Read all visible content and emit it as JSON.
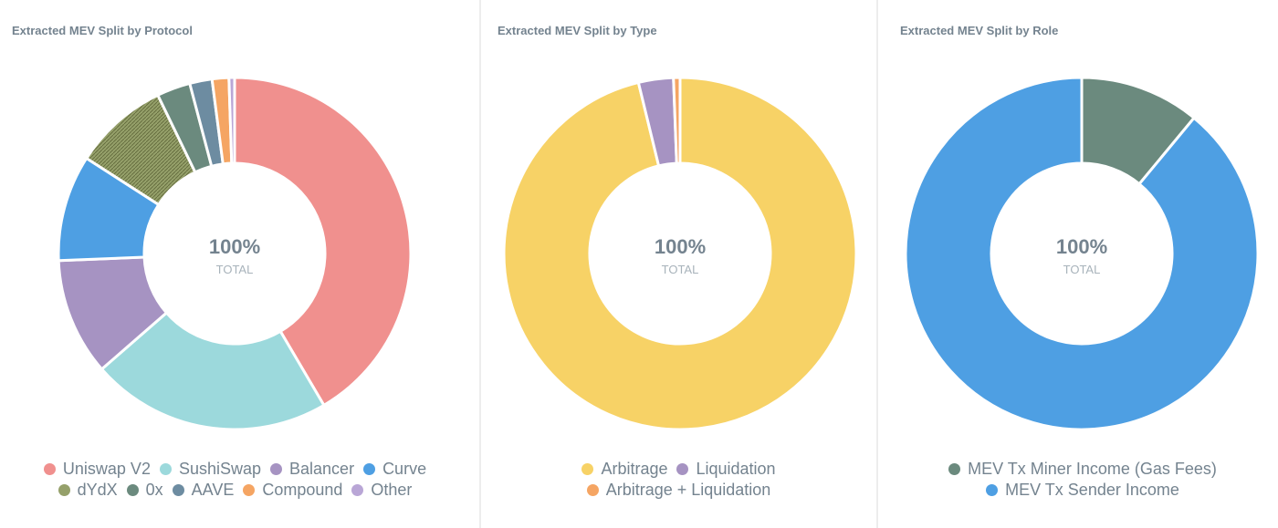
{
  "chart_data": [
    {
      "type": "pie",
      "title": "Extracted MEV Split by Protocol",
      "center_value": "100%",
      "center_label": "TOTAL",
      "categories": [
        "Uniswap V2",
        "SushiSwap",
        "Balancer",
        "Curve",
        "dYdX",
        "0x",
        "AAVE",
        "Compound",
        "Other"
      ],
      "values": [
        40.5,
        21.5,
        10.5,
        9.5,
        8.5,
        3.0,
        2.0,
        1.5,
        0.5
      ],
      "colors": [
        "#f0908e",
        "#9cd9dc",
        "#a693c2",
        "#4e9fe3",
        "#95a06a",
        "#6b8a7e",
        "#6d8ca1",
        "#f5a563",
        "#b9a6d6"
      ],
      "hatched": [
        false,
        false,
        false,
        false,
        true,
        false,
        false,
        false,
        false
      ],
      "legend_rows": [
        [
          0,
          1,
          2,
          3
        ],
        [
          4,
          5,
          6,
          7,
          8
        ]
      ],
      "legend_position": "bottom"
    },
    {
      "type": "pie",
      "title": "Extracted MEV Split by Type",
      "center_value": "100%",
      "center_label": "TOTAL",
      "categories": [
        "Arbitrage",
        "Liquidation",
        "Arbitrage + Liquidation"
      ],
      "values": [
        96.2,
        3.2,
        0.6
      ],
      "colors": [
        "#f7d266",
        "#a693c2",
        "#f5a563"
      ],
      "hatched": [
        false,
        false,
        false
      ],
      "legend_rows": [
        [
          0,
          1
        ],
        [
          2
        ]
      ],
      "legend_position": "bottom"
    },
    {
      "type": "pie",
      "title": "Extracted MEV Split by Role",
      "center_value": "100%",
      "center_label": "TOTAL",
      "categories": [
        "MEV Tx Miner Income (Gas Fees)",
        "MEV Tx Sender Income"
      ],
      "values": [
        11,
        89
      ],
      "colors": [
        "#6b8a7e",
        "#4e9fe3"
      ],
      "hatched": [
        false,
        false
      ],
      "legend_rows": [
        [
          0
        ],
        [
          1
        ]
      ],
      "legend_position": "bottom"
    }
  ]
}
